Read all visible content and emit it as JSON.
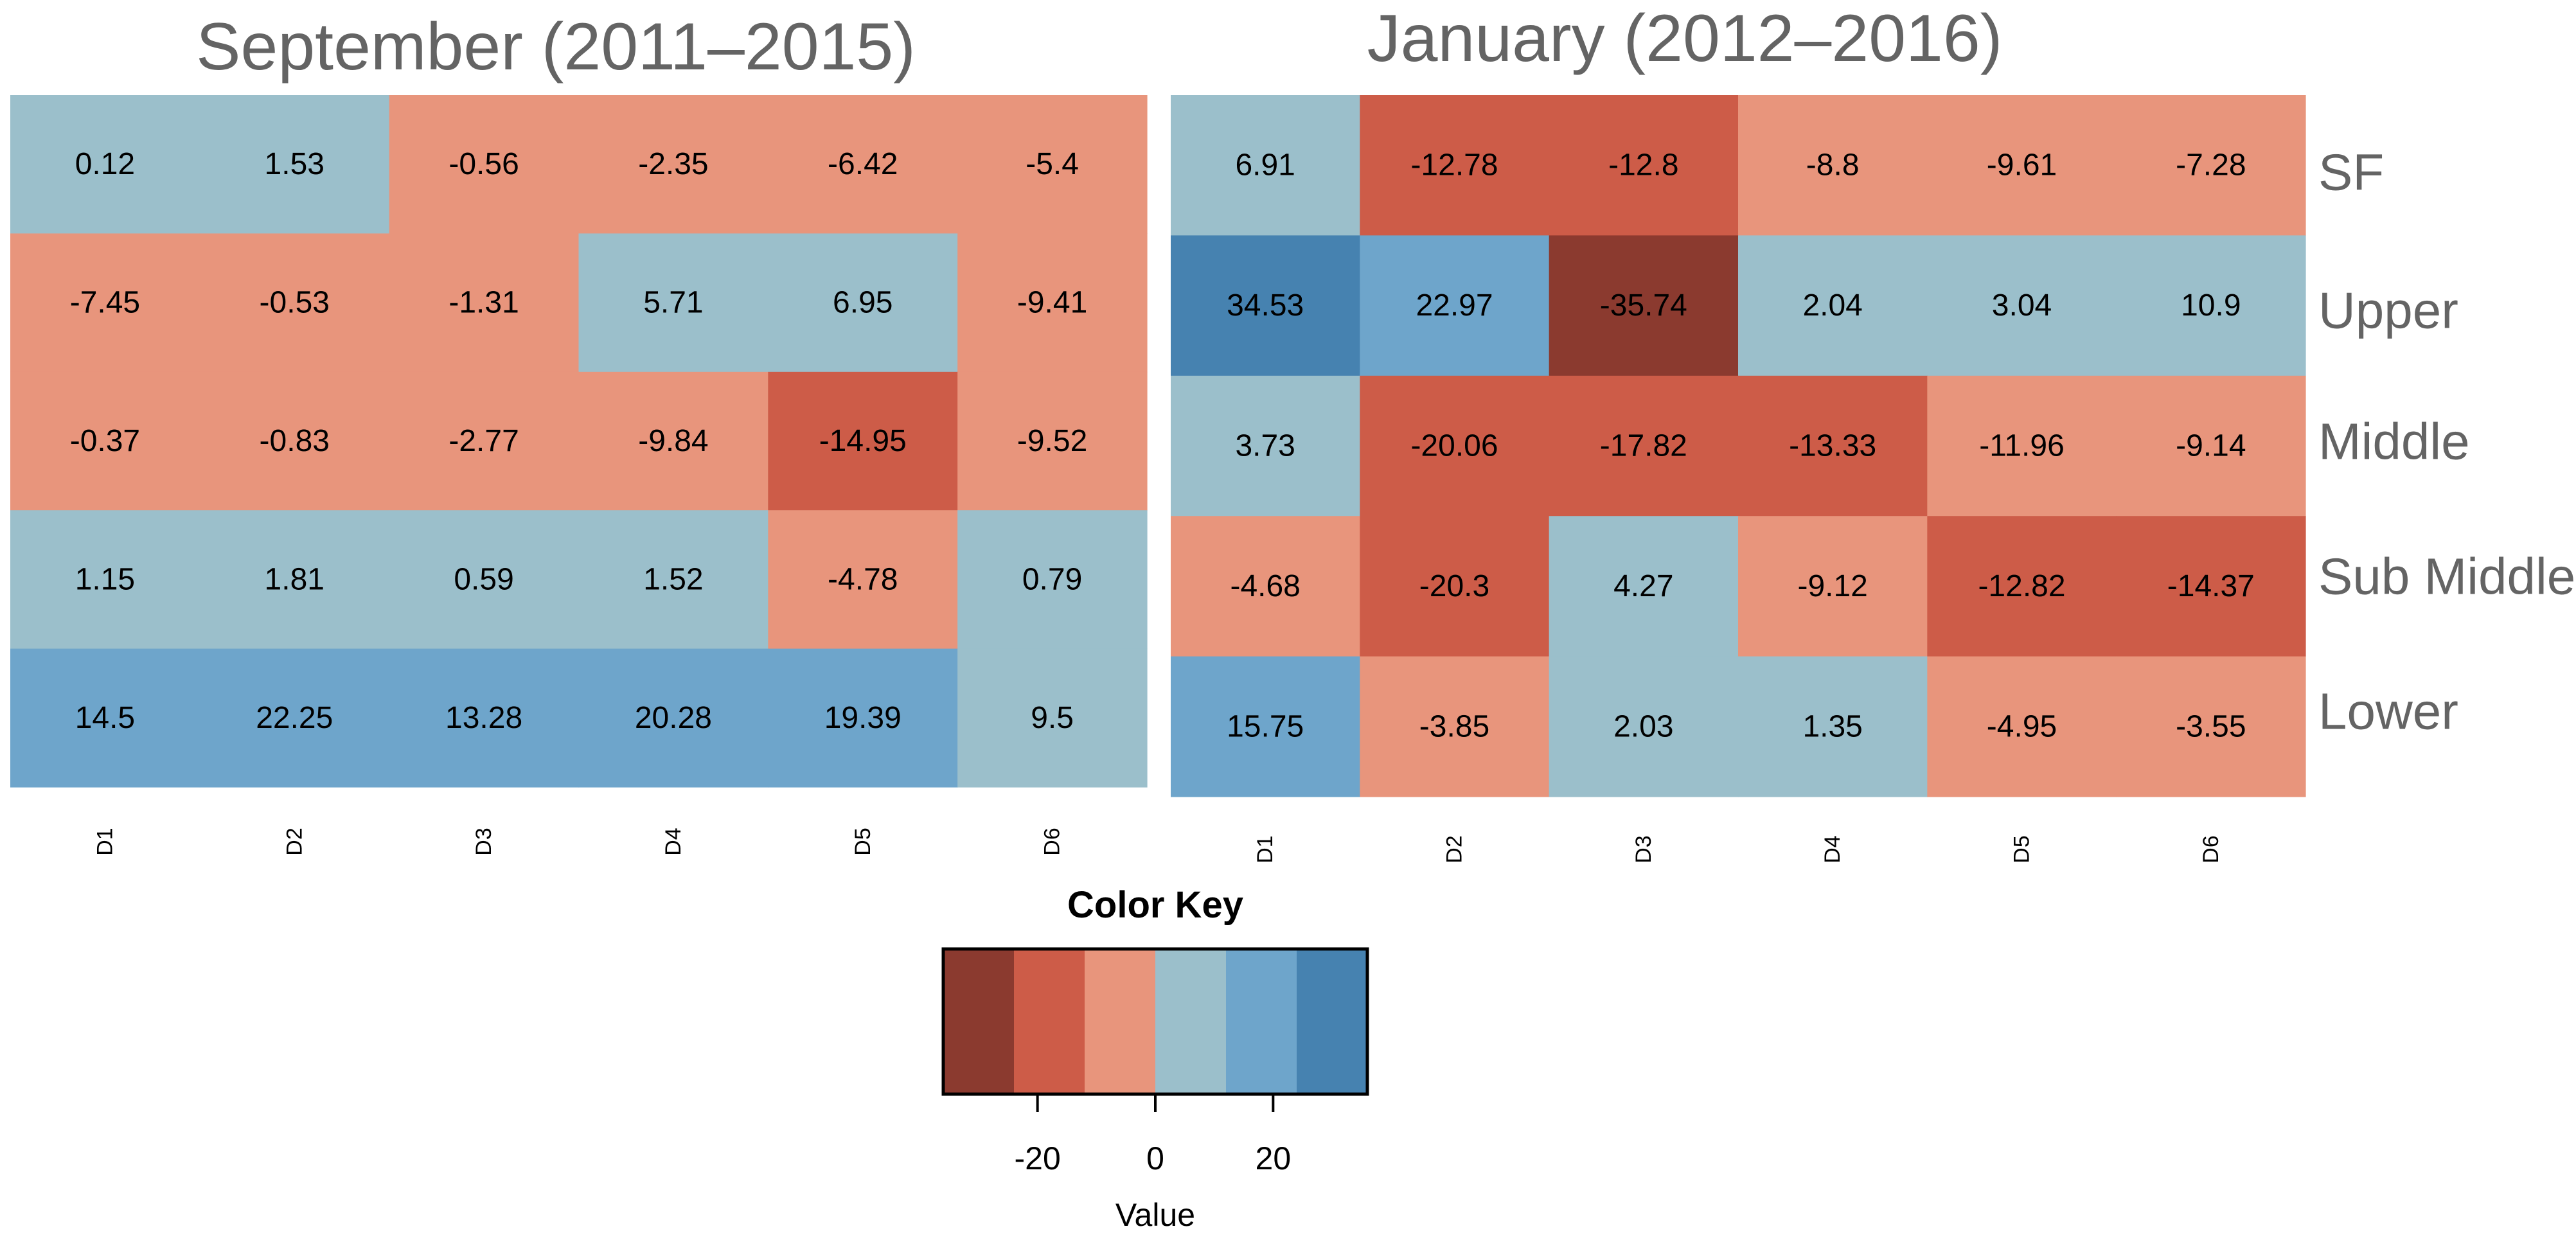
{
  "chart_data": [
    {
      "type": "heatmap",
      "title": "September (2011–2015)",
      "columns": [
        "D1",
        "D2",
        "D3",
        "D4",
        "D5",
        "D6"
      ],
      "rows": [
        "SF",
        "Upper",
        "Middle",
        "Sub Middle",
        "Lower"
      ],
      "values": [
        [
          0.12,
          1.53,
          -0.56,
          -2.35,
          -6.42,
          -5.4
        ],
        [
          -7.45,
          -0.53,
          -1.31,
          5.71,
          6.95,
          -9.41
        ],
        [
          -0.37,
          -0.83,
          -2.77,
          -9.84,
          -14.95,
          -9.52
        ],
        [
          1.15,
          1.81,
          0.59,
          1.52,
          -4.78,
          0.79
        ],
        [
          14.5,
          22.25,
          13.28,
          20.28,
          19.39,
          9.5
        ]
      ]
    },
    {
      "type": "heatmap",
      "title": "January (2012–2016)",
      "columns": [
        "D1",
        "D2",
        "D3",
        "D4",
        "D5",
        "D6"
      ],
      "rows": [
        "SF",
        "Upper",
        "Middle",
        "Sub Middle",
        "Lower"
      ],
      "values": [
        [
          6.91,
          -12.78,
          -12.8,
          -8.8,
          -9.61,
          -7.28
        ],
        [
          34.53,
          22.97,
          -35.74,
          2.04,
          3.04,
          10.9
        ],
        [
          3.73,
          -20.06,
          -17.82,
          -13.33,
          -11.96,
          -9.14
        ],
        [
          -4.68,
          -20.3,
          4.27,
          -9.12,
          -12.82,
          -14.37
        ],
        [
          15.75,
          -3.85,
          2.03,
          1.35,
          -4.95,
          -3.55
        ]
      ]
    }
  ],
  "color_key": {
    "title": "Color Key",
    "xlabel": "Value",
    "range": [
      -36,
      36
    ],
    "breaks": [
      -36,
      -24,
      -12,
      0,
      12,
      24,
      36
    ],
    "colors": [
      "#8B3A2F",
      "#CD5C48",
      "#E8957C",
      "#9BBFCB",
      "#6EA5CB",
      "#4682B0"
    ],
    "ticks": [
      -20,
      0,
      20
    ]
  }
}
